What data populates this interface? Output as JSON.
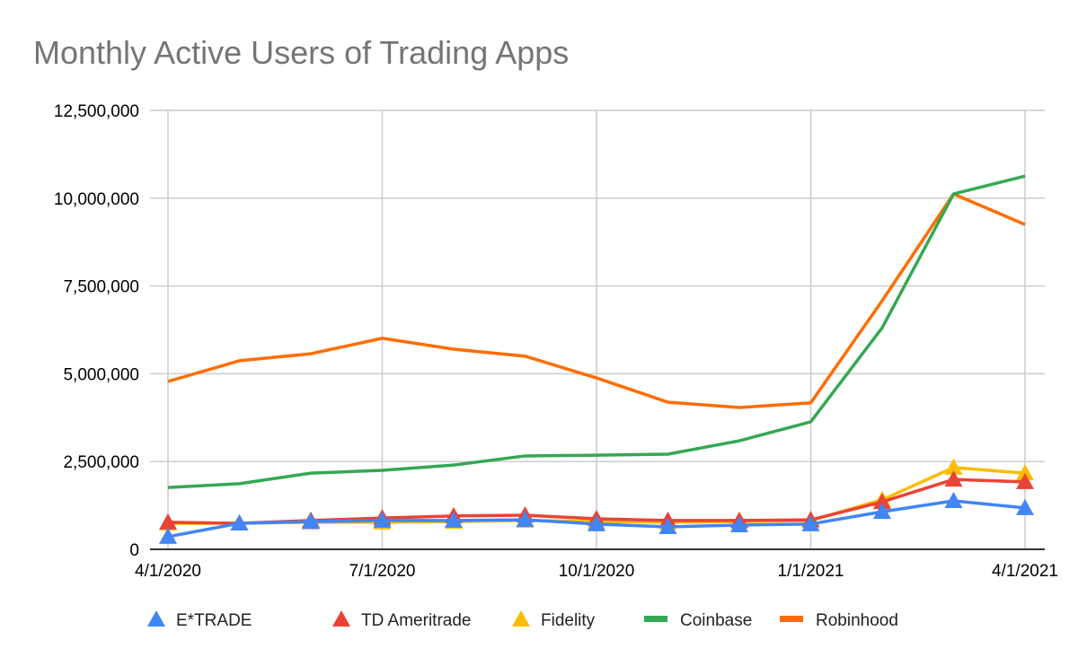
{
  "chart_data": {
    "type": "line",
    "title": "Monthly Active Users of Trading Apps",
    "x": [
      "4/1/2020",
      "5/1/2020",
      "6/1/2020",
      "7/1/2020",
      "8/1/2020",
      "9/1/2020",
      "10/1/2020",
      "11/1/2020",
      "12/1/2020",
      "1/1/2021",
      "2/1/2021",
      "3/1/2021",
      "4/1/2021"
    ],
    "x_tick_labels": [
      "4/1/2020",
      "7/1/2020",
      "10/1/2020",
      "1/1/2021",
      "4/1/2021"
    ],
    "x_tick_index": [
      0,
      3,
      6,
      9,
      12
    ],
    "ylim": [
      0,
      12500000
    ],
    "y_ticks": [
      0,
      2500000,
      5000000,
      7500000,
      10000000,
      12500000
    ],
    "y_tick_labels": [
      "0",
      "2,500,000",
      "5,000,000",
      "7,500,000",
      "10,000,000",
      "12,500,000"
    ],
    "grid": true,
    "legend": "bottom",
    "series": [
      {
        "name": "E*TRADE",
        "color": "#4285f4",
        "marker": "triangle",
        "values": [
          360000,
          740000,
          790000,
          820000,
          820000,
          840000,
          720000,
          640000,
          690000,
          720000,
          1070000,
          1380000,
          1180000
        ]
      },
      {
        "name": "TD Ameritrade",
        "color": "#ea4335",
        "marker": "triangle",
        "values": [
          770000,
          740000,
          820000,
          890000,
          950000,
          970000,
          870000,
          820000,
          820000,
          840000,
          1350000,
          1990000,
          1920000
        ]
      },
      {
        "name": "Fidelity",
        "color": "#fbbc04",
        "marker": "triangle",
        "values": [
          740000,
          740000,
          770000,
          770000,
          790000,
          820000,
          790000,
          770000,
          790000,
          820000,
          1410000,
          2330000,
          2170000
        ]
      },
      {
        "name": "Coinbase",
        "color": "#34a853",
        "marker": "none",
        "values": [
          1760000,
          1870000,
          2170000,
          2250000,
          2400000,
          2660000,
          2680000,
          2710000,
          3090000,
          3630000,
          6310000,
          10120000,
          10630000
        ]
      },
      {
        "name": "Robinhood",
        "color": "#ff6d01",
        "marker": "none",
        "values": [
          4780000,
          5370000,
          5570000,
          6010000,
          5700000,
          5500000,
          4880000,
          4190000,
          4040000,
          4170000,
          7080000,
          10120000,
          9250000
        ]
      }
    ]
  }
}
